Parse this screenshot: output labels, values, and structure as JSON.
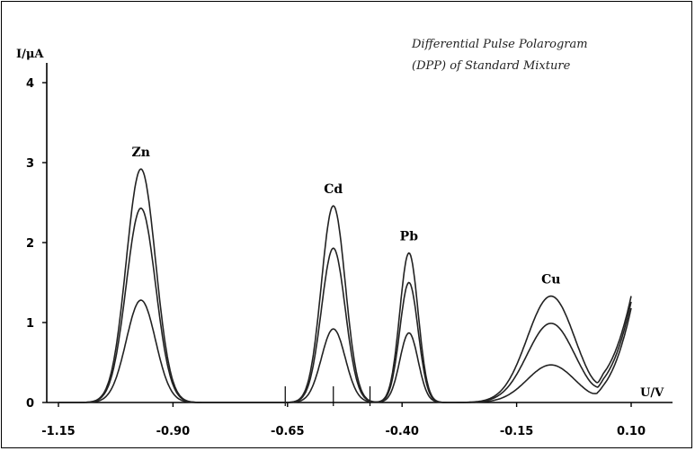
{
  "chart_data": {
    "type": "line",
    "title_lines": [
      "Differential  Pulse Polarogram",
      "(DPP) of Standard Mixture"
    ],
    "xlabel": "U/V",
    "ylabel": "I/μA",
    "xlim": [
      -1.22,
      0.22
    ],
    "ylim": [
      0,
      4.2
    ],
    "x_ticks": [
      -1.15,
      -0.9,
      -0.65,
      -0.4,
      -0.15,
      0.1
    ],
    "x_tick_labels": [
      "-1.15",
      "-0.90",
      "-0.65",
      "-0.40",
      "-0.15",
      "0.10"
    ],
    "y_ticks": [
      0,
      1,
      2,
      3,
      4
    ],
    "y_tick_labels": [
      "0",
      "1",
      "2",
      "3",
      "4"
    ],
    "marker_ticks": [
      -0.655,
      -0.55,
      -0.47
    ],
    "peaks": [
      {
        "label": "Zn",
        "center": -0.97,
        "width": 0.032,
        "heights": [
          2.92,
          2.43,
          1.28
        ]
      },
      {
        "label": "Cd",
        "center": -0.55,
        "width": 0.026,
        "heights": [
          2.46,
          1.93,
          0.92
        ]
      },
      {
        "label": "Pb",
        "center": -0.385,
        "width": 0.02,
        "heights": [
          1.87,
          1.5,
          0.87
        ]
      },
      {
        "label": "Cu",
        "center": -0.075,
        "width": 0.052,
        "heights": [
          1.33,
          0.99,
          0.47
        ]
      }
    ],
    "tail": {
      "x_end": 0.1,
      "y_end": 1.08
    },
    "series_count": 3,
    "grid": false,
    "line_color": "#222222"
  }
}
